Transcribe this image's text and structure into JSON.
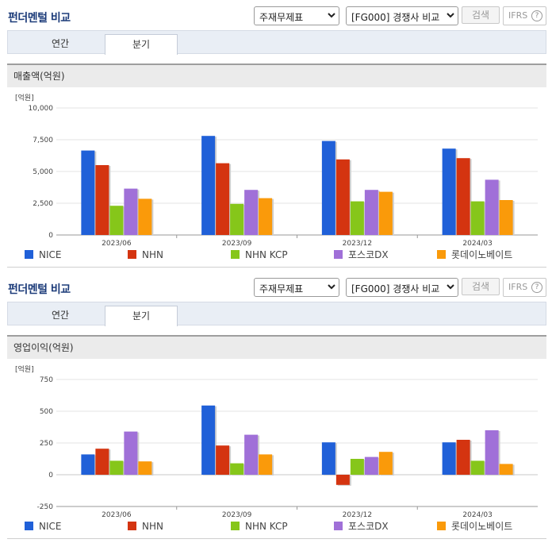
{
  "panels": [
    {
      "title": "펀더멘털 비교",
      "select1": "주재무제표",
      "select2": "[FG000] 경쟁사 비교",
      "search_label": "검색",
      "ifrs_label": "IFRS",
      "help_label": "?",
      "tabs": [
        "연간",
        "분기"
      ],
      "active_tab": "분기",
      "section_title": "매출액(억원)",
      "unit": "[억원]"
    },
    {
      "title": "펀더멘털 비교",
      "select1": "주재무제표",
      "select2": "[FG000] 경쟁사 비교",
      "search_label": "검색",
      "ifrs_label": "IFRS",
      "help_label": "?",
      "tabs": [
        "연간",
        "분기"
      ],
      "active_tab": "분기",
      "section_title": "영업이익(억원)",
      "unit": "[억원]"
    }
  ],
  "colors": {
    "NICE": "#2060d8",
    "NHN": "#d43410",
    "NHN KCP": "#86c61a",
    "포스코DX": "#a070d8",
    "롯데이노베이트": "#fa9a0a"
  },
  "chart_data": [
    {
      "type": "bar",
      "categories": [
        "2023/06",
        "2023/09",
        "2023/12",
        "2024/03"
      ],
      "series": [
        {
          "name": "NICE",
          "values": [
            6650,
            7800,
            7400,
            6800
          ]
        },
        {
          "name": "NHN",
          "values": [
            5500,
            5650,
            5950,
            6050
          ]
        },
        {
          "name": "NHN KCP",
          "values": [
            2300,
            2450,
            2650,
            2650
          ]
        },
        {
          "name": "포스코DX",
          "values": [
            3650,
            3550,
            3550,
            4350
          ]
        },
        {
          "name": "롯데이노베이트",
          "values": [
            2850,
            2900,
            3400,
            2750
          ]
        }
      ],
      "yticks": [
        "10,000",
        "7,500",
        "5,000",
        "2,500",
        "0"
      ],
      "ylim": [
        0,
        10000
      ],
      "ylabel": "[억원]",
      "title": "매출액(억원)",
      "legend": "bottom",
      "grid": true
    },
    {
      "type": "bar",
      "categories": [
        "2023/06",
        "2023/09",
        "2023/12",
        "2024/03"
      ],
      "series": [
        {
          "name": "NICE",
          "values": [
            160,
            545,
            255,
            255
          ]
        },
        {
          "name": "NHN",
          "values": [
            205,
            230,
            -80,
            275
          ]
        },
        {
          "name": "NHN KCP",
          "values": [
            110,
            90,
            125,
            110
          ]
        },
        {
          "name": "포스코DX",
          "values": [
            340,
            315,
            140,
            350
          ]
        },
        {
          "name": "롯데이노베이트",
          "values": [
            105,
            160,
            180,
            85
          ]
        }
      ],
      "yticks": [
        "750",
        "500",
        "250",
        "0",
        "-250"
      ],
      "ylim": [
        -250,
        750
      ],
      "ylabel": "[억원]",
      "title": "영업이익(억원)",
      "legend": "bottom",
      "grid": true
    }
  ]
}
